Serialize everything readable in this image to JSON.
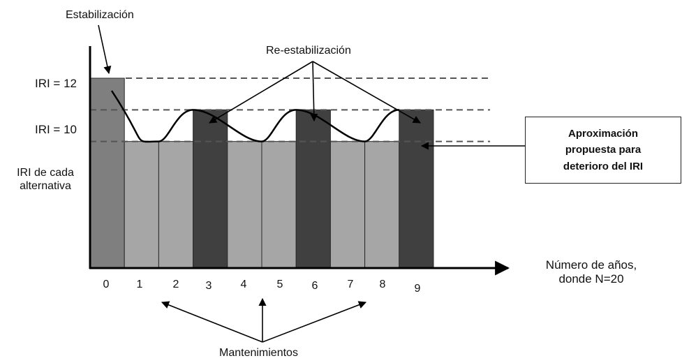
{
  "chart_data": {
    "type": "bar",
    "title": "",
    "xlabel_line1": "Número de años,",
    "xlabel_line2": "donde N=20",
    "ylabel": "",
    "y_ticks": [
      {
        "label": "IRI = 12",
        "value": 12
      },
      {
        "label": "IRI = 10",
        "value": 10
      },
      {
        "label_line1": "IRI de cada",
        "label_line2": "alternativa",
        "value": 8
      }
    ],
    "categories": [
      "0",
      "1",
      "2",
      "3",
      "4",
      "5",
      "6",
      "7",
      "8",
      "9"
    ],
    "values": [
      12,
      8,
      8,
      10,
      8,
      8,
      10,
      8,
      8,
      10
    ],
    "bar_colors": [
      "#7f7f7f",
      "#a6a6a6",
      "#a6a6a6",
      "#404040",
      "#a6a6a6",
      "#a6a6a6",
      "#404040",
      "#a6a6a6",
      "#a6a6a6",
      "#404040"
    ],
    "reference_lines": [
      12,
      10,
      8
    ],
    "deterioration_curve": [
      {
        "x": 0.0,
        "y": 12
      },
      {
        "x": 2.0,
        "y": 8
      },
      {
        "x": 3.0,
        "y": 10
      },
      {
        "x": 5.0,
        "y": 8
      },
      {
        "x": 6.0,
        "y": 10
      },
      {
        "x": 8.0,
        "y": 8
      },
      {
        "x": 9.0,
        "y": 10
      }
    ],
    "ylim": [
      0,
      12
    ],
    "annotations": {
      "stabilization": "Estabilización",
      "re_stabilization": "Re-estabilización",
      "maintenance": "Mantenimientos",
      "callout_line1": "Aproximación",
      "callout_line2": "propuesta para",
      "callout_line3": "deterioro del IRI"
    }
  },
  "colors": {
    "axis": "#000000",
    "dashed_line": "#555555",
    "curve": "#000000"
  }
}
